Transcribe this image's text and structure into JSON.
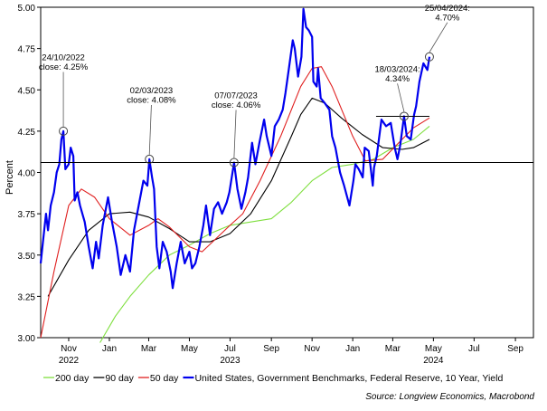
{
  "chart_data": {
    "type": "line",
    "ylabel": "Percent",
    "ylim": [
      3.0,
      5.0
    ],
    "yticks": [
      "3.00",
      "3.25",
      "3.50",
      "3.75",
      "4.00",
      "4.25",
      "4.50",
      "4.75",
      "5.00"
    ],
    "xlim": [
      "2022-09-20",
      "2024-09-28"
    ],
    "xticks": [
      {
        "date": "2022-11-01",
        "label": "Nov",
        "year": "2022"
      },
      {
        "date": "2023-01-01",
        "label": "Jan",
        "year": ""
      },
      {
        "date": "2023-03-01",
        "label": "Mar",
        "year": ""
      },
      {
        "date": "2023-05-01",
        "label": "May",
        "year": ""
      },
      {
        "date": "2023-07-01",
        "label": "Jul",
        "year": "2023"
      },
      {
        "date": "2023-09-01",
        "label": "Sep",
        "year": ""
      },
      {
        "date": "2023-11-01",
        "label": "Nov",
        "year": ""
      },
      {
        "date": "2024-01-01",
        "label": "Jan",
        "year": ""
      },
      {
        "date": "2024-03-01",
        "label": "Mar",
        "year": ""
      },
      {
        "date": "2024-05-01",
        "label": "May",
        "year": "2024"
      },
      {
        "date": "2024-07-01",
        "label": "Jul",
        "year": ""
      },
      {
        "date": "2024-09-01",
        "label": "Sep",
        "year": ""
      }
    ],
    "reference_line": 4.06,
    "source": "Source: Longview Economics, Macrobond",
    "legend_placement": "bottom",
    "series": [
      {
        "name": "200 day",
        "color": "#7fdf3f",
        "points": [
          [
            "2022-12-18",
            2.97
          ],
          [
            "2023-01-10",
            3.13
          ],
          [
            "2023-02-01",
            3.25
          ],
          [
            "2023-03-01",
            3.38
          ],
          [
            "2023-04-01",
            3.5
          ],
          [
            "2023-05-01",
            3.56
          ],
          [
            "2023-06-01",
            3.63
          ],
          [
            "2023-07-01",
            3.68
          ],
          [
            "2023-08-01",
            3.7
          ],
          [
            "2023-09-01",
            3.72
          ],
          [
            "2023-10-01",
            3.82
          ],
          [
            "2023-11-01",
            3.95
          ],
          [
            "2023-12-01",
            4.03
          ],
          [
            "2024-01-01",
            4.05
          ],
          [
            "2024-02-01",
            4.08
          ],
          [
            "2024-03-01",
            4.15
          ],
          [
            "2024-04-01",
            4.2
          ],
          [
            "2024-04-25",
            4.28
          ]
        ]
      },
      {
        "name": "90 day",
        "color": "#000000",
        "points": [
          [
            "2022-10-01",
            3.25
          ],
          [
            "2022-11-01",
            3.47
          ],
          [
            "2022-12-01",
            3.65
          ],
          [
            "2023-01-01",
            3.75
          ],
          [
            "2023-02-01",
            3.76
          ],
          [
            "2023-03-01",
            3.73
          ],
          [
            "2023-04-01",
            3.66
          ],
          [
            "2023-05-01",
            3.58
          ],
          [
            "2023-06-01",
            3.58
          ],
          [
            "2023-07-01",
            3.63
          ],
          [
            "2023-08-01",
            3.75
          ],
          [
            "2023-09-01",
            3.95
          ],
          [
            "2023-10-01",
            4.22
          ],
          [
            "2023-10-15",
            4.35
          ],
          [
            "2023-11-01",
            4.45
          ],
          [
            "2023-11-20",
            4.42
          ],
          [
            "2023-12-15",
            4.33
          ],
          [
            "2024-01-15",
            4.23
          ],
          [
            "2024-02-15",
            4.15
          ],
          [
            "2024-03-15",
            4.14
          ],
          [
            "2024-04-01",
            4.15
          ],
          [
            "2024-04-25",
            4.2
          ]
        ]
      },
      {
        "name": "50 day",
        "color": "#e02020",
        "points": [
          [
            "2022-09-20",
            3.0
          ],
          [
            "2022-10-10",
            3.4
          ],
          [
            "2022-11-01",
            3.8
          ],
          [
            "2022-11-20",
            3.9
          ],
          [
            "2022-12-10",
            3.85
          ],
          [
            "2023-01-01",
            3.72
          ],
          [
            "2023-02-01",
            3.62
          ],
          [
            "2023-03-01",
            3.68
          ],
          [
            "2023-03-15",
            3.72
          ],
          [
            "2023-04-01",
            3.67
          ],
          [
            "2023-05-01",
            3.55
          ],
          [
            "2023-05-20",
            3.52
          ],
          [
            "2023-06-10",
            3.6
          ],
          [
            "2023-07-01",
            3.68
          ],
          [
            "2023-07-20",
            3.75
          ],
          [
            "2023-08-15",
            3.95
          ],
          [
            "2023-09-15",
            4.22
          ],
          [
            "2023-10-15",
            4.52
          ],
          [
            "2023-11-01",
            4.63
          ],
          [
            "2023-11-15",
            4.64
          ],
          [
            "2023-12-01",
            4.52
          ],
          [
            "2024-01-01",
            4.22
          ],
          [
            "2024-01-20",
            4.07
          ],
          [
            "2024-02-15",
            4.08
          ],
          [
            "2024-03-10",
            4.18
          ],
          [
            "2024-04-01",
            4.27
          ],
          [
            "2024-04-25",
            4.33
          ]
        ]
      },
      {
        "name": "United States, Government Benchmarks, Federal Reserve, 10 Year, Yield",
        "color": "#0000ee",
        "points": [
          [
            "2022-09-20",
            3.45
          ],
          [
            "2022-09-24",
            3.6
          ],
          [
            "2022-09-28",
            3.75
          ],
          [
            "2022-10-01",
            3.65
          ],
          [
            "2022-10-05",
            3.8
          ],
          [
            "2022-10-10",
            3.88
          ],
          [
            "2022-10-14",
            4.0
          ],
          [
            "2022-10-18",
            4.05
          ],
          [
            "2022-10-21",
            4.2
          ],
          [
            "2022-10-24",
            4.25
          ],
          [
            "2022-10-27",
            4.02
          ],
          [
            "2022-11-01",
            4.05
          ],
          [
            "2022-11-04",
            4.15
          ],
          [
            "2022-11-08",
            4.1
          ],
          [
            "2022-11-10",
            3.83
          ],
          [
            "2022-11-14",
            3.88
          ],
          [
            "2022-11-18",
            3.8
          ],
          [
            "2022-11-25",
            3.7
          ],
          [
            "2022-12-01",
            3.55
          ],
          [
            "2022-12-07",
            3.42
          ],
          [
            "2022-12-12",
            3.58
          ],
          [
            "2022-12-16",
            3.48
          ],
          [
            "2022-12-22",
            3.68
          ],
          [
            "2022-12-30",
            3.85
          ],
          [
            "2023-01-05",
            3.7
          ],
          [
            "2023-01-12",
            3.55
          ],
          [
            "2023-01-18",
            3.38
          ],
          [
            "2023-01-25",
            3.5
          ],
          [
            "2023-02-01",
            3.4
          ],
          [
            "2023-02-07",
            3.65
          ],
          [
            "2023-02-14",
            3.8
          ],
          [
            "2023-02-21",
            3.95
          ],
          [
            "2023-02-27",
            3.92
          ],
          [
            "2023-03-02",
            4.08
          ],
          [
            "2023-03-06",
            3.97
          ],
          [
            "2023-03-09",
            3.9
          ],
          [
            "2023-03-13",
            3.55
          ],
          [
            "2023-03-17",
            3.42
          ],
          [
            "2023-03-22",
            3.58
          ],
          [
            "2023-03-28",
            3.52
          ],
          [
            "2023-04-03",
            3.4
          ],
          [
            "2023-04-06",
            3.3
          ],
          [
            "2023-04-12",
            3.45
          ],
          [
            "2023-04-18",
            3.58
          ],
          [
            "2023-04-24",
            3.45
          ],
          [
            "2023-05-01",
            3.52
          ],
          [
            "2023-05-05",
            3.42
          ],
          [
            "2023-05-10",
            3.45
          ],
          [
            "2023-05-16",
            3.55
          ],
          [
            "2023-05-22",
            3.68
          ],
          [
            "2023-05-26",
            3.8
          ],
          [
            "2023-06-01",
            3.62
          ],
          [
            "2023-06-07",
            3.78
          ],
          [
            "2023-06-13",
            3.82
          ],
          [
            "2023-06-19",
            3.75
          ],
          [
            "2023-06-26",
            3.82
          ],
          [
            "2023-06-30",
            3.88
          ],
          [
            "2023-07-07",
            4.06
          ],
          [
            "2023-07-12",
            3.9
          ],
          [
            "2023-07-18",
            3.78
          ],
          [
            "2023-07-24",
            3.88
          ],
          [
            "2023-07-28",
            3.97
          ],
          [
            "2023-08-03",
            4.18
          ],
          [
            "2023-08-08",
            4.05
          ],
          [
            "2023-08-14",
            4.18
          ],
          [
            "2023-08-21",
            4.32
          ],
          [
            "2023-08-25",
            4.22
          ],
          [
            "2023-09-01",
            4.1
          ],
          [
            "2023-09-06",
            4.28
          ],
          [
            "2023-09-12",
            4.32
          ],
          [
            "2023-09-18",
            4.38
          ],
          [
            "2023-09-22",
            4.48
          ],
          [
            "2023-09-27",
            4.62
          ],
          [
            "2023-10-03",
            4.8
          ],
          [
            "2023-10-06",
            4.75
          ],
          [
            "2023-10-11",
            4.58
          ],
          [
            "2023-10-16",
            4.7
          ],
          [
            "2023-10-19",
            4.99
          ],
          [
            "2023-10-23",
            4.88
          ],
          [
            "2023-10-27",
            4.86
          ],
          [
            "2023-11-01",
            4.82
          ],
          [
            "2023-11-03",
            4.55
          ],
          [
            "2023-11-08",
            4.52
          ],
          [
            "2023-11-10",
            4.63
          ],
          [
            "2023-11-14",
            4.45
          ],
          [
            "2023-11-20",
            4.42
          ],
          [
            "2023-11-27",
            4.38
          ],
          [
            "2023-12-01",
            4.22
          ],
          [
            "2023-12-06",
            4.15
          ],
          [
            "2023-12-13",
            4.0
          ],
          [
            "2023-12-19",
            3.92
          ],
          [
            "2023-12-27",
            3.8
          ],
          [
            "2024-01-02",
            3.95
          ],
          [
            "2024-01-05",
            4.05
          ],
          [
            "2024-01-10",
            4.02
          ],
          [
            "2024-01-16",
            3.97
          ],
          [
            "2024-01-19",
            4.15
          ],
          [
            "2024-01-25",
            4.13
          ],
          [
            "2024-01-31",
            3.92
          ],
          [
            "2024-02-02",
            4.03
          ],
          [
            "2024-02-06",
            4.1
          ],
          [
            "2024-02-13",
            4.32
          ],
          [
            "2024-02-20",
            4.28
          ],
          [
            "2024-02-27",
            4.3
          ],
          [
            "2024-03-04",
            4.15
          ],
          [
            "2024-03-08",
            4.08
          ],
          [
            "2024-03-12",
            4.16
          ],
          [
            "2024-03-18",
            4.34
          ],
          [
            "2024-03-22",
            4.22
          ],
          [
            "2024-03-28",
            4.2
          ],
          [
            "2024-04-02",
            4.35
          ],
          [
            "2024-04-05",
            4.4
          ],
          [
            "2024-04-10",
            4.55
          ],
          [
            "2024-04-16",
            4.66
          ],
          [
            "2024-04-22",
            4.62
          ],
          [
            "2024-04-25",
            4.7
          ]
        ]
      }
    ],
    "annotations": [
      {
        "date": "2022-10-24",
        "value": 4.25,
        "line1": "24/10/2022",
        "line2": "close: 4.25%",
        "label_date": "2022-10-24",
        "label_value": 4.63,
        "anchor": "middle"
      },
      {
        "date": "2023-03-02",
        "value": 4.08,
        "line1": "02/03/2023",
        "line2": "close: 4.08%",
        "label_date": "2023-03-05",
        "label_value": 4.43,
        "anchor": "middle"
      },
      {
        "date": "2023-07-07",
        "value": 4.06,
        "line1": "07/07/2023",
        "line2": "close: 4.06%",
        "label_date": "2023-07-10",
        "label_value": 4.4,
        "anchor": "middle"
      },
      {
        "date": "2024-03-18",
        "value": 4.34,
        "line1": "18/03/2024:",
        "line2": "4.34%",
        "label_date": "2024-03-08",
        "label_value": 4.56,
        "anchor": "middle"
      },
      {
        "date": "2024-04-25",
        "value": 4.7,
        "line1": "25/04/2024:",
        "line2": "4.70%",
        "label_date": "2024-05-22",
        "label_value": 4.93,
        "anchor": "middle"
      }
    ],
    "flat_line": {
      "from": "2024-02-05",
      "to": "2024-04-25",
      "value": 4.34
    }
  }
}
